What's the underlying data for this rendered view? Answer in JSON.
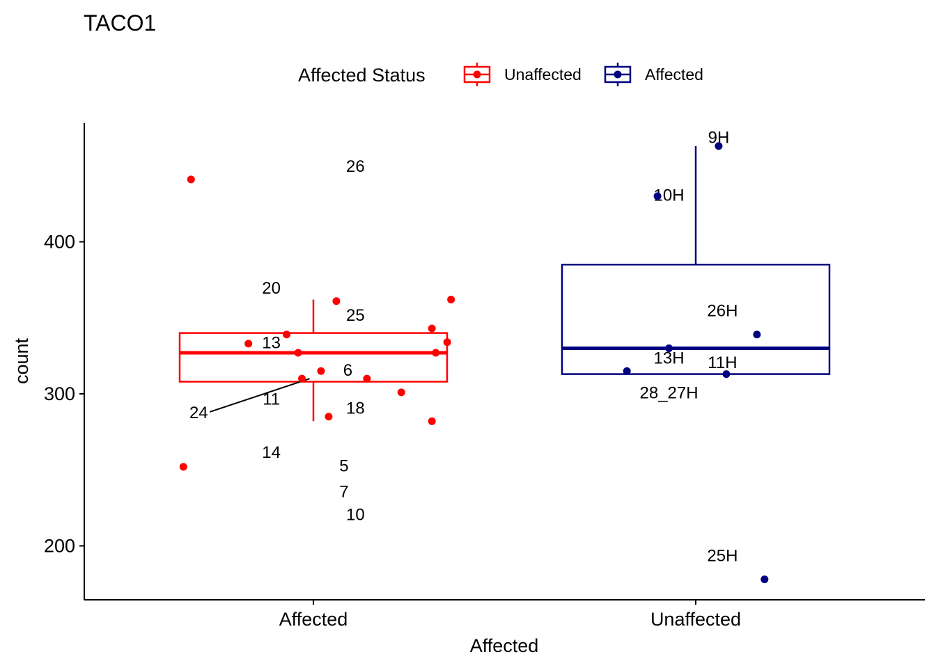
{
  "chart_data": {
    "type": "box",
    "title": "TACO1",
    "xlabel": "Affected",
    "ylabel": "count",
    "categories": [
      "Affected",
      "Unaffected"
    ],
    "ylim": [
      165,
      470
    ],
    "yticks": [
      200,
      300,
      400
    ],
    "legend": {
      "title": "Affected Status",
      "position": "top",
      "entries": [
        {
          "name": "Unaffected",
          "color": "#ff0000"
        },
        {
          "name": "Affected",
          "color": "#000080"
        }
      ]
    },
    "series": [
      {
        "name": "Unaffected",
        "category": "Affected",
        "color": "#ff0000",
        "box": {
          "whisker_low": 282,
          "q1": 308,
          "median": 327,
          "q3": 340,
          "whisker_high": 362
        },
        "points": [
          {
            "jitter": -0.32,
            "y": 441
          },
          {
            "jitter": -0.34,
            "y": 252
          },
          {
            "jitter": 0.06,
            "y": 361
          },
          {
            "jitter": 0.36,
            "y": 362
          },
          {
            "jitter": 0.31,
            "y": 343
          },
          {
            "jitter": -0.07,
            "y": 339
          },
          {
            "jitter": -0.17,
            "y": 333
          },
          {
            "jitter": 0.35,
            "y": 334
          },
          {
            "jitter": -0.04,
            "y": 327
          },
          {
            "jitter": 0.32,
            "y": 327
          },
          {
            "jitter": 0.02,
            "y": 315
          },
          {
            "jitter": 0.14,
            "y": 310
          },
          {
            "jitter": -0.03,
            "y": 310
          },
          {
            "jitter": 0.23,
            "y": 301
          },
          {
            "jitter": 0.04,
            "y": 285
          },
          {
            "jitter": 0.31,
            "y": 282
          }
        ],
        "labels": [
          {
            "text": "26",
            "jitter": 0.11,
            "y": 446
          },
          {
            "text": "20",
            "jitter": -0.11,
            "y": 366
          },
          {
            "text": "25",
            "jitter": 0.11,
            "y": 348
          },
          {
            "text": "13",
            "jitter": -0.11,
            "y": 330
          },
          {
            "text": "6",
            "jitter": 0.09,
            "y": 312
          },
          {
            "text": "11",
            "jitter": -0.11,
            "y": 293
          },
          {
            "text": "18",
            "jitter": 0.11,
            "y": 287
          },
          {
            "text": "24",
            "jitter": -0.3,
            "y": 284,
            "leader": true,
            "px": -0.01,
            "py": 310
          },
          {
            "text": "14",
            "jitter": -0.11,
            "y": 258
          },
          {
            "text": "5",
            "jitter": 0.08,
            "y": 249
          },
          {
            "text": "7",
            "jitter": 0.08,
            "y": 232
          },
          {
            "text": "10",
            "jitter": 0.11,
            "y": 217
          }
        ]
      },
      {
        "name": "Affected",
        "category": "Unaffected",
        "color": "#000080",
        "box": {
          "whisker_low": 313,
          "q1": 313,
          "median": 330,
          "q3": 385,
          "whisker_high": 463
        },
        "points": [
          {
            "jitter": 0.06,
            "y": 463
          },
          {
            "jitter": -0.1,
            "y": 430
          },
          {
            "jitter": 0.16,
            "y": 339
          },
          {
            "jitter": -0.07,
            "y": 330
          },
          {
            "jitter": -0.18,
            "y": 315
          },
          {
            "jitter": 0.08,
            "y": 313
          },
          {
            "jitter": 0.18,
            "y": 178
          }
        ],
        "labels": [
          {
            "text": "9H",
            "jitter": 0.06,
            "y": 465
          },
          {
            "text": "10H",
            "jitter": -0.07,
            "y": 427
          },
          {
            "text": "26H",
            "jitter": 0.07,
            "y": 351
          },
          {
            "text": "13H",
            "jitter": -0.07,
            "y": 320
          },
          {
            "text": "11H",
            "jitter": 0.07,
            "y": 317
          },
          {
            "text": "28_27H",
            "jitter": -0.07,
            "y": 297
          },
          {
            "text": "25H",
            "jitter": 0.07,
            "y": 190
          }
        ]
      }
    ]
  }
}
